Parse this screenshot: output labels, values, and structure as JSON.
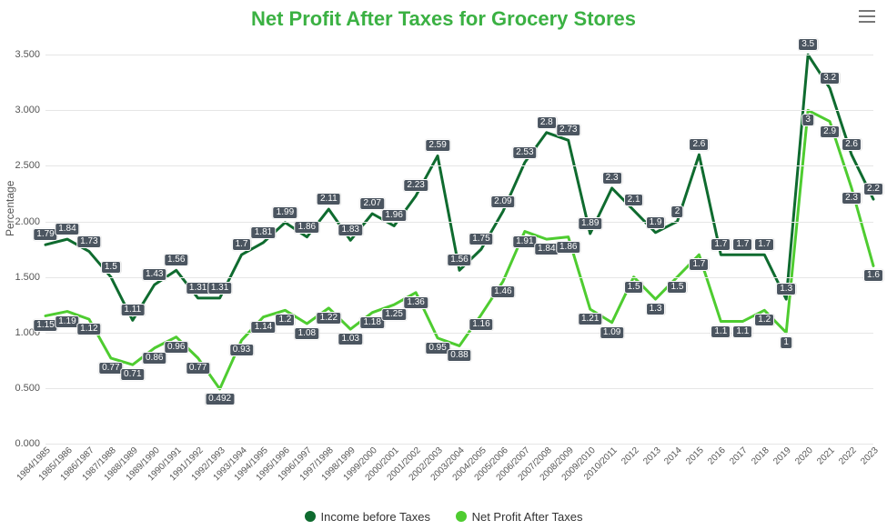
{
  "chart": {
    "type": "line",
    "title": "Net Profit After Taxes for Grocery Stores",
    "title_color": "#3bb143",
    "title_fontsize": 22,
    "background_color": "#ffffff",
    "grid_color": "#e6e6e6",
    "axis_label_color": "#555555",
    "data_label_bg": "#4b5560",
    "data_label_fg": "#ffffff",
    "ylabel": "Percentage",
    "ylim": [
      0,
      3.6
    ],
    "ytick_step": 0.5,
    "yticks": [
      "0.000",
      "0.500",
      "1.000",
      "1.500",
      "2.000",
      "2.500",
      "3.000",
      "3.500"
    ],
    "line_width": 3,
    "categories": [
      "1984/1985",
      "1985/1986",
      "1986/1987",
      "1987/1988",
      "1988/1989",
      "1989/1990",
      "1990/1991",
      "1991/1992",
      "1992/1993",
      "1993/1994",
      "1994/1995",
      "1995/1996",
      "1996/1997",
      "1997/1998",
      "1998/1999",
      "1999/2000",
      "2000/2001",
      "2001/2002",
      "2002/2003",
      "2003/2004",
      "2004/2005",
      "2005/2006",
      "2006/2007",
      "2007/2008",
      "2008/2009",
      "2009/2010",
      "2010/2011",
      "2012",
      "2013",
      "2014",
      "2015",
      "2016",
      "2017",
      "2018",
      "2019",
      "2020",
      "2021",
      "2022",
      "2023"
    ],
    "series": [
      {
        "name": "Income before Taxes",
        "color": "#0f6b2f",
        "values": [
          1.79,
          1.84,
          1.73,
          1.5,
          1.11,
          1.43,
          1.56,
          1.31,
          1.31,
          1.7,
          1.81,
          1.99,
          1.86,
          2.11,
          1.83,
          2.07,
          1.96,
          2.23,
          2.59,
          1.56,
          1.75,
          2.09,
          2.53,
          2.8,
          2.73,
          1.89,
          2.3,
          2.1,
          1.9,
          2,
          2.6,
          1.7,
          1.7,
          1.7,
          1.3,
          3.5,
          3.2,
          2.6,
          2.2
        ]
      },
      {
        "name": "Net Profit After Taxes",
        "color": "#4ecc30",
        "values": [
          1.15,
          1.19,
          1.12,
          0.77,
          0.71,
          0.86,
          0.96,
          0.77,
          0.492,
          0.93,
          1.14,
          1.2,
          1.08,
          1.22,
          1.03,
          1.18,
          1.25,
          1.36,
          0.95,
          0.88,
          1.16,
          1.46,
          1.91,
          1.84,
          1.86,
          1.21,
          1.09,
          1.5,
          1.3,
          1.5,
          1.7,
          1.1,
          1.1,
          1.2,
          1,
          3,
          2.9,
          2.3,
          1.6
        ]
      }
    ],
    "legend": {
      "position": "bottom",
      "items": [
        "Income before Taxes",
        "Net Profit After Taxes"
      ]
    },
    "menu_icon_color": "#777777"
  }
}
